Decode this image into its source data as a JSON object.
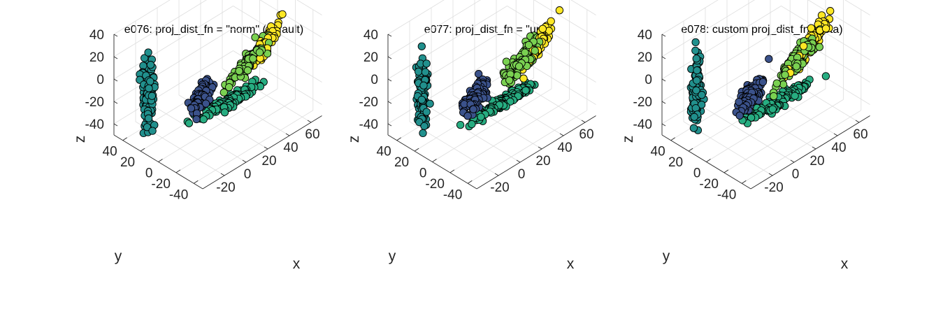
{
  "chart_data": [
    {
      "type": "scatter",
      "title": "e076: proj_dist_fn = \"norm\" (default)",
      "xlabel": "x",
      "ylabel": "y",
      "zlabel": "z",
      "x_ticks": [
        "-20",
        "0",
        "20",
        "40",
        "60"
      ],
      "y_ticks": [
        "40",
        "20",
        "0",
        "-20",
        "-40"
      ],
      "z_ticks": [
        "40",
        "20",
        "0",
        "-20",
        "-40"
      ],
      "grid": true,
      "series": [
        {
          "color": "#3b528b",
          "center": [
            0,
            0,
            -15
          ],
          "spread": [
            6,
            4,
            3.5
          ],
          "elongation": [
            0.4,
            0.2,
            0.2
          ],
          "count": 120
        },
        {
          "color": "#21908d",
          "center": [
            -10,
            48,
            -30
          ],
          "spread": [
            3,
            4,
            6
          ],
          "elongation": [
            0.1,
            0.1,
            1.0
          ],
          "count": 110
        },
        {
          "color": "#27ad81",
          "center": [
            30,
            5,
            -40
          ],
          "spread": [
            8,
            4,
            3
          ],
          "elongation": [
            1.0,
            0.0,
            0.0
          ],
          "count": 140
        },
        {
          "color": "#7ad151",
          "center": [
            40,
            -5,
            -5
          ],
          "spread": [
            4,
            4,
            4
          ],
          "elongation": [
            0.5,
            -0.2,
            0.55
          ],
          "count": 100
        },
        {
          "color": "#fde725",
          "center": [
            52,
            -8,
            5
          ],
          "spread": [
            4,
            3,
            4
          ],
          "elongation": [
            0.45,
            -0.1,
            0.55
          ],
          "count": 100
        }
      ]
    },
    {
      "type": "scatter",
      "title": "e077: proj_dist_fn = \"unif\"",
      "xlabel": "x",
      "ylabel": "y",
      "zlabel": "z",
      "x_ticks": [
        "-20",
        "0",
        "20",
        "40",
        "60"
      ],
      "y_ticks": [
        "40",
        "20",
        "0",
        "-20",
        "-40"
      ],
      "z_ticks": [
        "40",
        "20",
        "0",
        "-20",
        "-40"
      ],
      "grid": true,
      "series": [
        {
          "color": "#3b528b",
          "center": [
            0,
            0,
            -15
          ],
          "spread": [
            6,
            4,
            3.5
          ],
          "elongation": [
            0.4,
            0.2,
            0.2
          ],
          "count": 120
        },
        {
          "color": "#21908d",
          "center": [
            -10,
            48,
            -30
          ],
          "spread": [
            3,
            4,
            7
          ],
          "elongation": [
            0.1,
            0.1,
            1.0
          ],
          "count": 110
        },
        {
          "color": "#27ad81",
          "center": [
            30,
            5,
            -40
          ],
          "spread": [
            9,
            4,
            3
          ],
          "elongation": [
            1.0,
            0.0,
            0.0
          ],
          "count": 140
        },
        {
          "color": "#7ad151",
          "center": [
            40,
            -5,
            -3
          ],
          "spread": [
            4,
            4,
            5
          ],
          "elongation": [
            0.5,
            -0.2,
            0.6
          ],
          "count": 100
        },
        {
          "color": "#fde725",
          "center": [
            52,
            -8,
            5
          ],
          "spread": [
            4,
            3,
            5
          ],
          "elongation": [
            0.45,
            -0.1,
            0.6
          ],
          "count": 100
        }
      ]
    },
    {
      "type": "scatter",
      "title": "e078: custom proj_dist_fn (Beta)",
      "xlabel": "x",
      "ylabel": "y",
      "zlabel": "z",
      "x_ticks": [
        "-20",
        "0",
        "20",
        "40",
        "60"
      ],
      "y_ticks": [
        "40",
        "20",
        "0",
        "-20",
        "-40"
      ],
      "z_ticks": [
        "40",
        "20",
        "0",
        "-20",
        "-40"
      ],
      "grid": true,
      "series": [
        {
          "color": "#3b528b",
          "center": [
            0,
            0,
            -15
          ],
          "spread": [
            6,
            4,
            3.5
          ],
          "elongation": [
            0.4,
            0.2,
            0.2
          ],
          "count": 120
        },
        {
          "color": "#21908d",
          "center": [
            -10,
            48,
            -30
          ],
          "spread": [
            3,
            4,
            10
          ],
          "elongation": [
            0.1,
            0.1,
            1.0
          ],
          "count": 110
        },
        {
          "color": "#27ad81",
          "center": [
            30,
            5,
            -40
          ],
          "spread": [
            11,
            4,
            3
          ],
          "elongation": [
            1.0,
            0.0,
            0.0
          ],
          "count": 140
        },
        {
          "color": "#7ad151",
          "center": [
            40,
            -5,
            -3
          ],
          "spread": [
            4,
            4,
            6
          ],
          "elongation": [
            0.5,
            -0.2,
            0.6
          ],
          "count": 100
        },
        {
          "color": "#fde725",
          "center": [
            52,
            -8,
            8
          ],
          "spread": [
            4,
            3,
            6
          ],
          "elongation": [
            0.45,
            -0.1,
            0.6
          ],
          "count": 100
        }
      ]
    }
  ]
}
